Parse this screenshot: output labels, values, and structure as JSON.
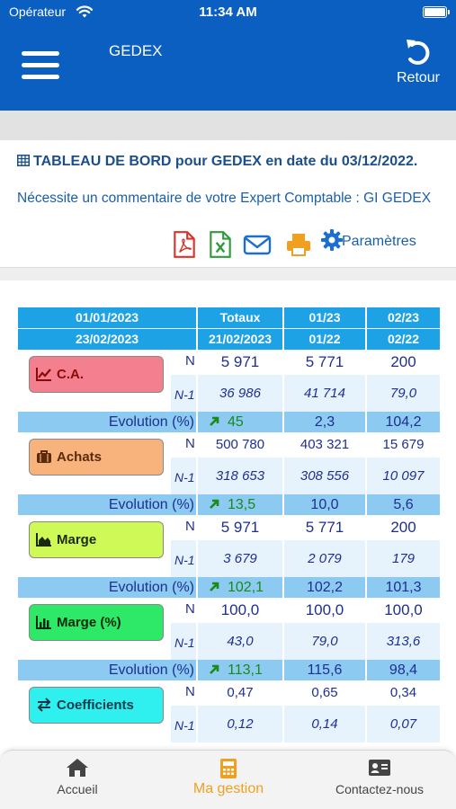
{
  "status_bar": {
    "carrier": "Opérateur",
    "time": "11:34 AM"
  },
  "header": {
    "title": "GEDEX",
    "back_label": "Retour"
  },
  "dashboard": {
    "title": "TABLEAU DE BORD pour GEDEX en date du 03/12/2022.",
    "comment": "Nécessite un commentaire de votre Expert Comptable : GI GEDEX",
    "actions": {
      "pdf_icon": "pdf-icon",
      "excel_icon": "excel-icon",
      "email_icon": "envelope-icon",
      "print_icon": "printer-icon",
      "settings_label": "Paramètres"
    }
  },
  "table": {
    "header_row1": [
      "01/01/2023",
      "Totaux",
      "01/23",
      "02/23"
    ],
    "header_row2": [
      "23/02/2023",
      "21/02/2023",
      "01/22",
      "02/22"
    ],
    "label_n": "N",
    "label_n1": "N-1",
    "evolution_label": "Evolution (%)",
    "metrics": [
      {
        "name": "C.A.",
        "color": "#f37f8f",
        "n": [
          "5 971",
          "5 771",
          "200"
        ],
        "n1": [
          "36 986",
          "41 714",
          "79,0"
        ],
        "evolution": [
          "45",
          "2,3",
          "104,2"
        ]
      },
      {
        "name": "Achats",
        "color": "#f8b37d",
        "n": [
          "500 780",
          "403 321",
          "15 679"
        ],
        "n1": [
          "318 653",
          "308 556",
          "10 097"
        ],
        "evolution": [
          "13,5",
          "10,0",
          "5,6"
        ]
      },
      {
        "name": "Marge",
        "color": "#cff957",
        "n": [
          "5 971",
          "5 771",
          "200"
        ],
        "n1": [
          "3 679",
          "2 079",
          "179"
        ],
        "evolution": [
          "102,1",
          "102,2",
          "101,3"
        ]
      },
      {
        "name": "Marge (%)",
        "color": "#2ee868",
        "n": [
          "100,0",
          "100,0",
          "100,0"
        ],
        "n1": [
          "43,0",
          "79,0",
          "313,6"
        ],
        "evolution": [
          "113,1",
          "115,6",
          "98,4"
        ]
      },
      {
        "name": "Coefficients",
        "color": "#2ff0ef",
        "n": [
          "0,47",
          "0,65",
          "0,34"
        ],
        "n1": [
          "0,12",
          "0,14",
          "0,07"
        ]
      }
    ]
  },
  "tabbar": {
    "tabs": [
      {
        "label": "Accueil",
        "icon": "home-icon"
      },
      {
        "label": "Ma gestion",
        "icon": "calculator-icon",
        "active": true
      },
      {
        "label": "Contactez-nous",
        "icon": "contact-card-icon"
      }
    ]
  },
  "colors": {
    "primary": "#0a5fc0",
    "header_cell": "#1ea2e6",
    "evolution_row": "#8ccaf2",
    "active_tab": "#f0a020"
  }
}
